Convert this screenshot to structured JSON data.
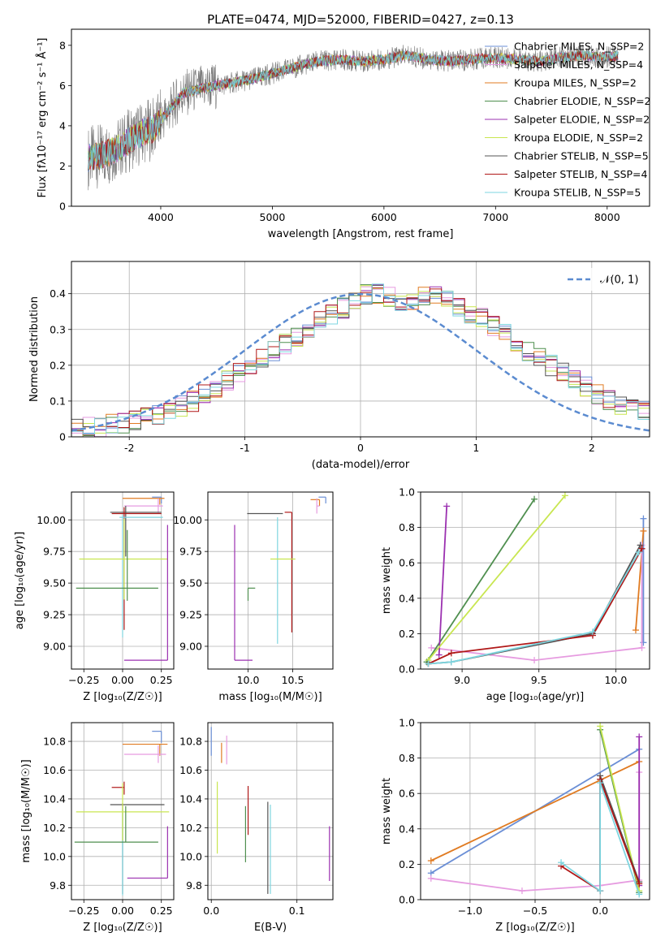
{
  "chart_data": [
    {
      "id": "spectrum",
      "type": "line",
      "title": "PLATE=0474, MJD=52000, FIBERID=0427, z=0.13",
      "xlabel": "wavelength [Angstrom, rest frame]",
      "ylabel": "Flux [fλ10⁻¹⁷ erg cm⁻² s⁻¹ Å⁻¹]",
      "xlim": [
        3200,
        8380
      ],
      "ylim": [
        0,
        8.8
      ],
      "xticks": [
        4000,
        5000,
        6000,
        7000,
        8000
      ],
      "yticks": [
        0,
        2,
        4,
        6,
        8
      ],
      "grid": false,
      "legend_position": "right",
      "continuum": {
        "x": [
          3350,
          3450,
          3550,
          3650,
          3750,
          3850,
          3950,
          4050,
          4200,
          4400,
          4600,
          4800,
          5000,
          5200,
          5400,
          5600,
          5800,
          6000,
          6200,
          6400,
          6600,
          6800,
          7000,
          7200,
          7400,
          7600,
          7800,
          8000,
          8100
        ],
        "y": [
          2.4,
          2.5,
          2.7,
          3.0,
          3.4,
          3.7,
          3.9,
          4.6,
          5.6,
          5.9,
          6.1,
          6.3,
          6.6,
          6.9,
          7.2,
          7.3,
          7.2,
          7.3,
          7.5,
          7.3,
          7.2,
          7.3,
          7.4,
          7.3,
          7.2,
          7.4,
          7.5,
          7.4,
          7.5
        ]
      },
      "legend": [
        {
          "name": "Chabrier MILES, N_SSP=2",
          "color": "#6b8fd6"
        },
        {
          "name": "Salpeter MILES, N_SSP=4",
          "color": "#e69be0"
        },
        {
          "name": "Kroupa MILES, N_SSP=2",
          "color": "#e07b22"
        },
        {
          "name": "Chabrier ELODIE, N_SSP=2",
          "color": "#4f8f4f"
        },
        {
          "name": "Salpeter ELODIE, N_SSP=2",
          "color": "#9b30b0"
        },
        {
          "name": "Kroupa ELODIE, N_SSP=2",
          "color": "#c8e650"
        },
        {
          "name": "Chabrier STELIB, N_SSP=5",
          "color": "#555555"
        },
        {
          "name": "Salpeter STELIB, N_SSP=4",
          "color": "#b01818"
        },
        {
          "name": "Kroupa STELIB, N_SSP=5",
          "color": "#7ed6e0"
        }
      ]
    },
    {
      "id": "residuals",
      "type": "histogram",
      "xlabel": "(data-model)/error",
      "ylabel": "Normed distribution",
      "xlim": [
        -2.5,
        2.5
      ],
      "ylim": [
        0,
        0.49
      ],
      "xticks": [
        -2,
        -1,
        0,
        1,
        2
      ],
      "yticks": [
        0.0,
        0.1,
        0.2,
        0.3,
        0.4
      ],
      "grid": true,
      "legend_position": "top-right",
      "reference": {
        "name": "𝒩(0, 1)",
        "color": "#5b8bd0",
        "style": "dashed"
      },
      "bin_width": 0.1,
      "bins_start": -2.5,
      "envelope": [
        0.02,
        0.025,
        0.03,
        0.035,
        0.04,
        0.045,
        0.055,
        0.065,
        0.075,
        0.085,
        0.1,
        0.12,
        0.14,
        0.16,
        0.18,
        0.2,
        0.22,
        0.24,
        0.26,
        0.28,
        0.3,
        0.32,
        0.34,
        0.36,
        0.38,
        0.4,
        0.4,
        0.39,
        0.38,
        0.38,
        0.39,
        0.4,
        0.38,
        0.36,
        0.34,
        0.33,
        0.31,
        0.29,
        0.27,
        0.24,
        0.22,
        0.2,
        0.18,
        0.16,
        0.14,
        0.12,
        0.1,
        0.09,
        0.08,
        0.07,
        0.06,
        0.05,
        0.045,
        0.04,
        0.035,
        0.03,
        0.03,
        0.025,
        0.025,
        0.02
      ]
    },
    {
      "id": "age-vs-Z",
      "type": "errorbar",
      "xlabel": "Z [log₁₀(Z/Z☉)]",
      "ylabel": "age  [log₁₀(age/yr)]",
      "xlim": [
        -0.33,
        0.33
      ],
      "ylim": [
        8.82,
        10.22
      ],
      "xticks": [
        -0.25,
        0.0,
        0.25
      ],
      "xticklabels": [
        "−0.25",
        "0.00",
        "0.25"
      ],
      "yticks": [
        9.0,
        9.25,
        9.5,
        9.75,
        10.0
      ],
      "yticklabels": [
        "9.00",
        "9.25",
        "9.50",
        "9.75",
        "10.00"
      ],
      "grid": true,
      "points": [
        {
          "color": "#6b8fd6",
          "x": 0.25,
          "y": 10.18,
          "xerr": [
            0.06,
            0.0
          ],
          "yerr": [
            0.05,
            0.0
          ]
        },
        {
          "color": "#e07b22",
          "x": 0.24,
          "y": 10.17,
          "xerr": [
            0.24,
            0.03
          ],
          "yerr": [
            0.05,
            0.0
          ]
        },
        {
          "color": "#e69be0",
          "x": 0.23,
          "y": 10.11,
          "xerr": [
            0.22,
            0.03
          ],
          "yerr": [
            0.06,
            0.06
          ]
        },
        {
          "color": "#555555",
          "x": 0.02,
          "y": 10.06,
          "xerr": [
            0.1,
            0.23
          ],
          "yerr": [
            0.35,
            0.05
          ]
        },
        {
          "color": "#b01818",
          "x": 0.01,
          "y": 10.05,
          "xerr": [
            0.08,
            0.24
          ],
          "yerr": [
            0.92,
            0.05
          ]
        },
        {
          "color": "#7ed6e0",
          "x": 0.0,
          "y": 10.02,
          "xerr": [
            0.02,
            0.26
          ],
          "yerr": [
            0.95,
            0.02
          ]
        },
        {
          "color": "#c8e650",
          "x": 0.01,
          "y": 9.69,
          "xerr": [
            0.29,
            0.28
          ],
          "yerr": [
            0.32,
            0.32
          ]
        },
        {
          "color": "#4f8f4f",
          "x": 0.03,
          "y": 9.46,
          "xerr": [
            0.33,
            0.2
          ],
          "yerr": [
            0.1,
            0.46
          ]
        },
        {
          "color": "#9b30b0",
          "x": 0.29,
          "y": 8.89,
          "xerr": [
            0.28,
            0.0
          ],
          "yerr": [
            0.0,
            1.07
          ]
        }
      ]
    },
    {
      "id": "age-vs-mass",
      "type": "errorbar",
      "xlabel": "mass [log₁₀(M/M☉)]",
      "ylabel": "",
      "xlim": [
        9.55,
        10.95
      ],
      "ylim": [
        8.82,
        10.22
      ],
      "xticks": [
        10.0,
        10.5
      ],
      "xticklabels": [
        "10.0",
        "10.5"
      ],
      "yticks": [
        9.0,
        9.25,
        9.5,
        9.75,
        10.0
      ],
      "yticklabels": [
        "9.00",
        "9.25",
        "9.50",
        "9.75",
        "10.00"
      ],
      "grid": true,
      "points": [
        {
          "color": "#6b8fd6",
          "x": 10.87,
          "y": 10.18,
          "xerr": [
            0.08,
            0.0
          ],
          "yerr": [
            0.05,
            0.0
          ]
        },
        {
          "color": "#e07b22",
          "x": 10.8,
          "y": 10.16,
          "xerr": [
            0.1,
            0.0
          ],
          "yerr": [
            0.05,
            0.0
          ]
        },
        {
          "color": "#e69be0",
          "x": 10.77,
          "y": 10.11,
          "xerr": [
            0.0,
            0.03
          ],
          "yerr": [
            0.06,
            0.06
          ]
        },
        {
          "color": "#555555",
          "x": 10.39,
          "y": 10.05,
          "xerr": [
            0.4,
            0.0
          ],
          "yerr": [
            0.0,
            0.0
          ]
        },
        {
          "color": "#b01818",
          "x": 10.49,
          "y": 10.06,
          "xerr": [
            0.08,
            0.0
          ],
          "yerr": [
            0.95,
            0.0
          ]
        },
        {
          "color": "#7ed6e0",
          "x": 10.33,
          "y": 10.02,
          "xerr": [
            0.0,
            0.0
          ],
          "yerr": [
            1.0,
            0.0
          ]
        },
        {
          "color": "#c8e650",
          "x": 10.3,
          "y": 9.69,
          "xerr": [
            0.05,
            0.23
          ],
          "yerr": [
            0.0,
            0.0
          ]
        },
        {
          "color": "#4f8f4f",
          "x": 10.0,
          "y": 9.46,
          "xerr": [
            0.0,
            0.08
          ],
          "yerr": [
            0.1,
            0.0
          ]
        },
        {
          "color": "#9b30b0",
          "x": 9.85,
          "y": 8.89,
          "xerr": [
            0.0,
            0.2
          ],
          "yerr": [
            0.0,
            1.07
          ]
        }
      ]
    },
    {
      "id": "weight-vs-age",
      "type": "line",
      "xlabel": "age  [log₁₀(age/yr)]",
      "ylabel": "mass weight",
      "xlim": [
        8.73,
        10.22
      ],
      "ylim": [
        0,
        1.0
      ],
      "xticks": [
        9.0,
        9.5,
        10.0
      ],
      "xticklabels": [
        "9.0",
        "9.5",
        "10.0"
      ],
      "yticks": [
        0.0,
        0.2,
        0.4,
        0.6,
        0.8,
        1.0
      ],
      "yticklabels": [
        "0.0",
        "0.2",
        "0.4",
        "0.6",
        "0.8",
        "1.0"
      ],
      "grid": true,
      "series": [
        {
          "color": "#6b8fd6",
          "x": [
            10.18,
            10.18
          ],
          "y": [
            0.85,
            0.15
          ]
        },
        {
          "color": "#e07b22",
          "x": [
            10.13,
            10.18
          ],
          "y": [
            0.22,
            0.78
          ]
        },
        {
          "color": "#e69be0",
          "x": [
            8.8,
            9.47,
            10.17,
            10.17
          ],
          "y": [
            0.12,
            0.05,
            0.12,
            0.7
          ]
        },
        {
          "color": "#4f8f4f",
          "x": [
            8.77,
            9.47
          ],
          "y": [
            0.04,
            0.96
          ]
        },
        {
          "color": "#9b30b0",
          "x": [
            8.85,
            8.9
          ],
          "y": [
            0.08,
            0.92
          ]
        },
        {
          "color": "#c8e650",
          "x": [
            8.78,
            9.67
          ],
          "y": [
            0.05,
            0.98
          ]
        },
        {
          "color": "#555555",
          "x": [
            8.78,
            8.93,
            9.85,
            10.16
          ],
          "y": [
            0.03,
            0.04,
            0.2,
            0.7
          ]
        },
        {
          "color": "#b01818",
          "x": [
            8.78,
            8.93,
            9.85,
            10.17
          ],
          "y": [
            0.03,
            0.09,
            0.19,
            0.68
          ]
        },
        {
          "color": "#7ed6e0",
          "x": [
            8.78,
            8.93,
            9.85,
            10.15
          ],
          "y": [
            0.03,
            0.04,
            0.21,
            0.66
          ]
        }
      ]
    },
    {
      "id": "mass-vs-Z",
      "type": "errorbar",
      "xlabel": "Z [log₁₀(Z/Z☉)]",
      "ylabel": "mass [log₁₀(M/M☉)]",
      "xlim": [
        -0.33,
        0.33
      ],
      "ylim": [
        9.7,
        10.93
      ],
      "xticks": [
        -0.25,
        0.0,
        0.25
      ],
      "xticklabels": [
        "−0.25",
        "0.00",
        "0.25"
      ],
      "yticks": [
        9.8,
        10.0,
        10.2,
        10.4,
        10.6,
        10.8
      ],
      "yticklabels": [
        "9.8",
        "10.0",
        "10.2",
        "10.4",
        "10.6",
        "10.8"
      ],
      "grid": true,
      "points": [
        {
          "color": "#6b8fd6",
          "x": 0.25,
          "y": 10.87,
          "xerr": [
            0.06,
            0.0
          ],
          "yerr": [
            0.08,
            0.0
          ]
        },
        {
          "color": "#e07b22",
          "x": 0.24,
          "y": 10.78,
          "xerr": [
            0.24,
            0.05
          ],
          "yerr": [
            0.08,
            0.0
          ]
        },
        {
          "color": "#e69be0",
          "x": 0.23,
          "y": 10.71,
          "xerr": [
            0.22,
            0.05
          ],
          "yerr": [
            0.06,
            0.06
          ]
        },
        {
          "color": "#b01818",
          "x": 0.01,
          "y": 10.48,
          "xerr": [
            0.08,
            0.0
          ],
          "yerr": [
            0.05,
            0.04
          ]
        },
        {
          "color": "#555555",
          "x": 0.0,
          "y": 10.36,
          "xerr": [
            0.08,
            0.27
          ],
          "yerr": [
            0.62,
            0.01
          ]
        },
        {
          "color": "#7ed6e0",
          "x": 0.0,
          "y": 10.33,
          "xerr": [
            0.0,
            0.0
          ],
          "yerr": [
            0.6,
            0.0
          ]
        },
        {
          "color": "#c8e650",
          "x": 0.0,
          "y": 10.31,
          "xerr": [
            0.3,
            0.3
          ],
          "yerr": [
            0.2,
            0.2
          ]
        },
        {
          "color": "#4f8f4f",
          "x": 0.02,
          "y": 10.1,
          "xerr": [
            0.33,
            0.21
          ],
          "yerr": [
            0.0,
            0.25
          ]
        },
        {
          "color": "#9b30b0",
          "x": 0.29,
          "y": 9.85,
          "xerr": [
            0.26,
            0.0
          ],
          "yerr": [
            0.0,
            0.36
          ]
        }
      ]
    },
    {
      "id": "mass-vs-EBV",
      "type": "errorbar",
      "xlabel": "E(B-V)",
      "ylabel": "",
      "xlim": [
        -0.004,
        0.142
      ],
      "ylim": [
        9.7,
        10.93
      ],
      "xticks": [
        0.0,
        0.1
      ],
      "xticklabels": [
        "0.0",
        "0.1"
      ],
      "yticks": [
        9.8,
        10.0,
        10.2,
        10.4,
        10.6,
        10.8
      ],
      "yticklabels": [
        "9.8",
        "10.0",
        "10.2",
        "10.4",
        "10.6",
        "10.8"
      ],
      "grid": true,
      "points": [
        {
          "color": "#6b8fd6",
          "x": 0.0,
          "y": 10.8,
          "xerr": [
            0.0,
            0.0
          ],
          "yerr": [
            0.1,
            0.1
          ]
        },
        {
          "color": "#e07b22",
          "x": 0.012,
          "y": 10.72,
          "xerr": [
            0.0,
            0.0
          ],
          "yerr": [
            0.07,
            0.07
          ]
        },
        {
          "color": "#e69be0",
          "x": 0.018,
          "y": 10.74,
          "xerr": [
            0.0,
            0.0
          ],
          "yerr": [
            0.1,
            0.1
          ]
        },
        {
          "color": "#c8e650",
          "x": 0.007,
          "y": 10.27,
          "xerr": [
            0.0,
            0.0
          ],
          "yerr": [
            0.25,
            0.25
          ]
        },
        {
          "color": "#b01818",
          "x": 0.043,
          "y": 10.3,
          "xerr": [
            0.0,
            0.0
          ],
          "yerr": [
            0.15,
            0.19
          ]
        },
        {
          "color": "#4f8f4f",
          "x": 0.04,
          "y": 10.15,
          "xerr": [
            0.0,
            0.0
          ],
          "yerr": [
            0.19,
            0.2
          ]
        },
        {
          "color": "#555555",
          "x": 0.066,
          "y": 10.05,
          "xerr": [
            0.0,
            0.0
          ],
          "yerr": [
            0.31,
            0.33
          ]
        },
        {
          "color": "#7ed6e0",
          "x": 0.069,
          "y": 10.04,
          "xerr": [
            0.0,
            0.0
          ],
          "yerr": [
            0.3,
            0.32
          ]
        },
        {
          "color": "#9b30b0",
          "x": 0.138,
          "y": 10.02,
          "xerr": [
            0.0,
            0.0
          ],
          "yerr": [
            0.19,
            0.19
          ]
        }
      ]
    },
    {
      "id": "weight-vs-Z",
      "type": "line",
      "xlabel": "Z [log₁₀(Z/Z☉)]",
      "ylabel": "mass weight",
      "xlim": [
        -1.38,
        0.38
      ],
      "ylim": [
        0,
        1.0
      ],
      "xticks": [
        -1.0,
        -0.5,
        0.0
      ],
      "xticklabels": [
        "−1.0",
        "−0.5",
        "0.0"
      ],
      "yticks": [
        0.0,
        0.2,
        0.4,
        0.6,
        0.8,
        1.0
      ],
      "yticklabels": [
        "0.0",
        "0.2",
        "0.4",
        "0.6",
        "0.8",
        "1.0"
      ],
      "grid": true,
      "series": [
        {
          "color": "#6b8fd6",
          "x": [
            -1.3,
            0.3
          ],
          "y": [
            0.15,
            0.85
          ]
        },
        {
          "color": "#e07b22",
          "x": [
            -1.3,
            0.3
          ],
          "y": [
            0.22,
            0.78
          ]
        },
        {
          "color": "#e69be0",
          "x": [
            -1.3,
            -0.6,
            0.0,
            0.3,
            0.3
          ],
          "y": [
            0.12,
            0.05,
            0.08,
            0.11,
            0.72
          ]
        },
        {
          "color": "#4f8f4f",
          "x": [
            0.0,
            0.3
          ],
          "y": [
            0.96,
            0.04
          ]
        },
        {
          "color": "#9b30b0",
          "x": [
            0.3,
            0.3
          ],
          "y": [
            0.92,
            0.08
          ]
        },
        {
          "color": "#c8e650",
          "x": [
            0.0,
            0.3
          ],
          "y": [
            0.98,
            0.05
          ]
        },
        {
          "color": "#555555",
          "x": [
            0.0,
            0.0,
            0.3
          ],
          "y": [
            0.05,
            0.7,
            0.1
          ]
        },
        {
          "color": "#b01818",
          "x": [
            -0.3,
            0.0,
            0.0,
            0.3
          ],
          "y": [
            0.19,
            0.05,
            0.68,
            0.09
          ]
        },
        {
          "color": "#7ed6e0",
          "x": [
            -0.3,
            0.0,
            0.0,
            0.3
          ],
          "y": [
            0.21,
            0.05,
            0.66,
            0.03
          ]
        }
      ]
    }
  ]
}
